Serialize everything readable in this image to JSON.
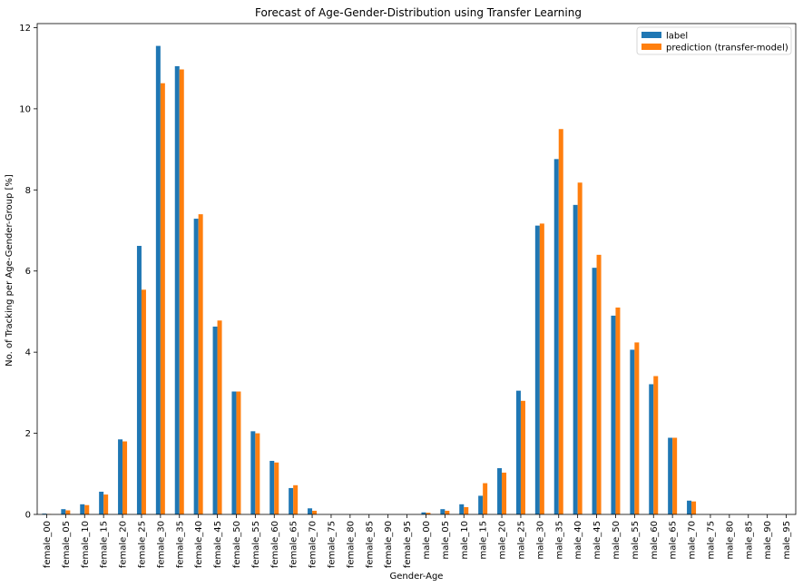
{
  "chart_data": {
    "type": "bar",
    "title": "Forecast of Age-Gender-Distribution using Transfer Learning",
    "xlabel": "Gender-Age",
    "ylabel": "No. of Tracking per Age-Gender-Group [%]",
    "ylim": [
      0,
      12.1
    ],
    "yticks": [
      0,
      2,
      4,
      6,
      8,
      10,
      12
    ],
    "grid": false,
    "legend_position": "top-right",
    "categories": [
      "female_00",
      "female_05",
      "female_10",
      "female_15",
      "female_20",
      "female_25",
      "female_30",
      "female_35",
      "female_40",
      "female_45",
      "female_50",
      "female_55",
      "female_60",
      "female_65",
      "female_70",
      "female_75",
      "female_80",
      "female_85",
      "female_90",
      "female_95",
      "male_00",
      "male_05",
      "male_10",
      "male_15",
      "male_20",
      "male_25",
      "male_30",
      "male_35",
      "male_40",
      "male_45",
      "male_50",
      "male_55",
      "male_60",
      "male_65",
      "male_70",
      "male_75",
      "male_80",
      "male_85",
      "male_90",
      "male_95"
    ],
    "series": [
      {
        "name": "label",
        "color": "#1f77b4",
        "values": [
          0.02,
          0.13,
          0.25,
          0.56,
          1.85,
          6.62,
          11.55,
          11.05,
          7.29,
          4.63,
          3.03,
          2.05,
          1.32,
          0.65,
          0.15,
          0,
          0,
          0,
          0,
          0,
          0.05,
          0.13,
          0.25,
          0.46,
          1.14,
          3.05,
          7.12,
          8.76,
          7.63,
          6.08,
          4.9,
          4.06,
          3.21,
          1.89,
          0.34,
          0,
          0,
          0,
          0,
          0
        ]
      },
      {
        "name": "prediction (transfer-model)",
        "color": "#ff7f0e",
        "values": [
          0.01,
          0.1,
          0.23,
          0.49,
          1.8,
          5.54,
          10.63,
          10.97,
          7.4,
          4.78,
          3.03,
          2.0,
          1.28,
          0.72,
          0.09,
          0,
          0,
          0,
          0,
          0,
          0.04,
          0.09,
          0.18,
          0.77,
          1.03,
          2.8,
          7.17,
          9.5,
          8.18,
          6.4,
          5.1,
          4.24,
          3.41,
          1.89,
          0.32,
          0,
          0,
          0,
          0,
          0
        ]
      }
    ]
  }
}
